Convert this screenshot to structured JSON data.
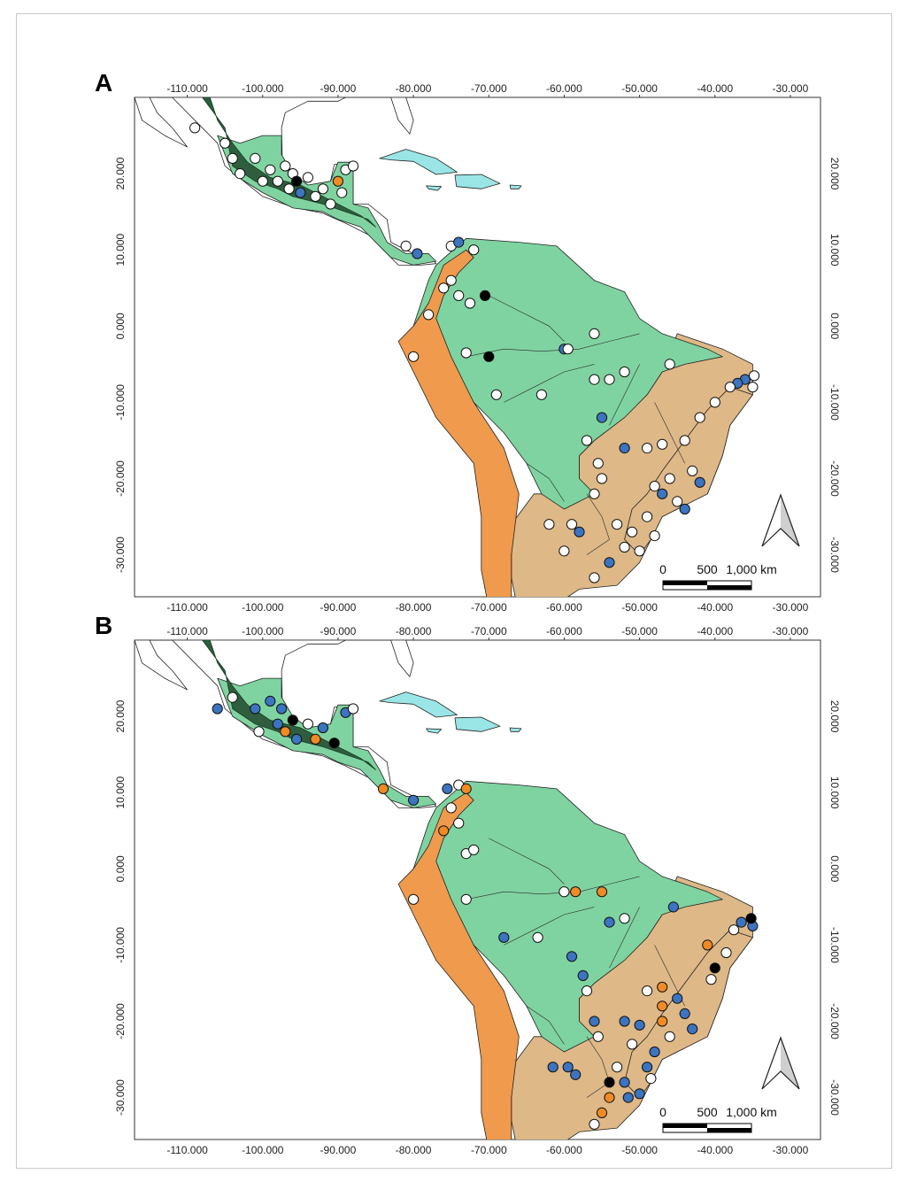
{
  "colors": {
    "tropical_moist": "#7fd3a0",
    "dry_savanna": "#deb887",
    "montane": "#ef9a4d",
    "conifer_dark": "#2e5e3e",
    "caribbean": "#9ae6e6",
    "outline": "#222222",
    "dot_white": "#ffffff",
    "dot_blue": "#3c74c0",
    "dot_orange": "#f08a24",
    "dot_black": "#000000"
  },
  "legend_classes": [
    "white",
    "blue",
    "orange",
    "black"
  ],
  "scale_bar": {
    "labels": [
      "0",
      "500",
      "1,000 km"
    ]
  },
  "panels": [
    {
      "id": "A",
      "label": "A",
      "x_ticks": [
        "-110.000",
        "-100.000",
        "-90.000",
        "-80.000",
        "-70.000",
        "-60.000",
        "-50.000",
        "-40.000",
        "-30.000"
      ],
      "x_tick_values": [
        -110,
        -100,
        -90,
        -80,
        -70,
        -60,
        -50,
        -40,
        -30
      ],
      "y_ticks": [
        "20.000",
        "10.000",
        "0.000",
        "-10.000",
        "-20.000",
        "-30.000"
      ],
      "y_tick_values": [
        20,
        10,
        0,
        -10,
        -20,
        -30
      ],
      "lon_range": [
        -117,
        -26
      ],
      "lat_range": [
        -35.5,
        30
      ],
      "points": [
        {
          "lon": -109,
          "lat": 26,
          "c": "white"
        },
        {
          "lon": -105,
          "lat": 24,
          "c": "white"
        },
        {
          "lon": -104,
          "lat": 22,
          "c": "white"
        },
        {
          "lon": -103,
          "lat": 20,
          "c": "white"
        },
        {
          "lon": -101,
          "lat": 22,
          "c": "white"
        },
        {
          "lon": -100,
          "lat": 19,
          "c": "white"
        },
        {
          "lon": -99,
          "lat": 20.5,
          "c": "white"
        },
        {
          "lon": -98,
          "lat": 19,
          "c": "white"
        },
        {
          "lon": -97,
          "lat": 21,
          "c": "white"
        },
        {
          "lon": -96.5,
          "lat": 18,
          "c": "white"
        },
        {
          "lon": -96,
          "lat": 20,
          "c": "white"
        },
        {
          "lon": -95.5,
          "lat": 19,
          "c": "black"
        },
        {
          "lon": -95,
          "lat": 17.5,
          "c": "blue"
        },
        {
          "lon": -94,
          "lat": 19.5,
          "c": "white"
        },
        {
          "lon": -93,
          "lat": 17,
          "c": "white"
        },
        {
          "lon": -92,
          "lat": 18,
          "c": "white"
        },
        {
          "lon": -91,
          "lat": 16,
          "c": "white"
        },
        {
          "lon": -90,
          "lat": 19,
          "c": "orange"
        },
        {
          "lon": -89,
          "lat": 20.5,
          "c": "white"
        },
        {
          "lon": -88,
          "lat": 21,
          "c": "white"
        },
        {
          "lon": -89.5,
          "lat": 17.5,
          "c": "white"
        },
        {
          "lon": -79.5,
          "lat": 9.5,
          "c": "blue"
        },
        {
          "lon": -81,
          "lat": 10.5,
          "c": "white"
        },
        {
          "lon": -75,
          "lat": 10.5,
          "c": "white"
        },
        {
          "lon": -74,
          "lat": 11,
          "c": "blue"
        },
        {
          "lon": -72,
          "lat": 10,
          "c": "white"
        },
        {
          "lon": -76,
          "lat": 5,
          "c": "white"
        },
        {
          "lon": -75,
          "lat": 6,
          "c": "white"
        },
        {
          "lon": -74,
          "lat": 4,
          "c": "white"
        },
        {
          "lon": -72.5,
          "lat": 3,
          "c": "white"
        },
        {
          "lon": -70.5,
          "lat": 4,
          "c": "black"
        },
        {
          "lon": -78,
          "lat": 1.5,
          "c": "white"
        },
        {
          "lon": -80,
          "lat": -4,
          "c": "white"
        },
        {
          "lon": -73,
          "lat": -3.5,
          "c": "white"
        },
        {
          "lon": -70,
          "lat": -4,
          "c": "black"
        },
        {
          "lon": -69,
          "lat": -9,
          "c": "white"
        },
        {
          "lon": -63,
          "lat": -9,
          "c": "white"
        },
        {
          "lon": -60,
          "lat": -3,
          "c": "blue"
        },
        {
          "lon": -59.5,
          "lat": -3,
          "c": "white"
        },
        {
          "lon": -56,
          "lat": -7,
          "c": "white"
        },
        {
          "lon": -54,
          "lat": -7,
          "c": "white"
        },
        {
          "lon": -52,
          "lat": -6,
          "c": "white"
        },
        {
          "lon": -55,
          "lat": -12,
          "c": "blue"
        },
        {
          "lon": -57,
          "lat": -15,
          "c": "white"
        },
        {
          "lon": -55.5,
          "lat": -18,
          "c": "white"
        },
        {
          "lon": -55,
          "lat": -20,
          "c": "white"
        },
        {
          "lon": -56,
          "lat": -22,
          "c": "white"
        },
        {
          "lon": -52,
          "lat": -16,
          "c": "blue"
        },
        {
          "lon": -49,
          "lat": -16,
          "c": "white"
        },
        {
          "lon": -47,
          "lat": -15.5,
          "c": "white"
        },
        {
          "lon": -44,
          "lat": -15,
          "c": "white"
        },
        {
          "lon": -42,
          "lat": -12,
          "c": "white"
        },
        {
          "lon": -40,
          "lat": -10,
          "c": "white"
        },
        {
          "lon": -46,
          "lat": -20,
          "c": "white"
        },
        {
          "lon": -48,
          "lat": -21,
          "c": "white"
        },
        {
          "lon": -47,
          "lat": -22,
          "c": "blue"
        },
        {
          "lon": -45,
          "lat": -23,
          "c": "white"
        },
        {
          "lon": -44,
          "lat": -24,
          "c": "blue"
        },
        {
          "lon": -43,
          "lat": -19,
          "c": "white"
        },
        {
          "lon": -42,
          "lat": -20.5,
          "c": "blue"
        },
        {
          "lon": -49,
          "lat": -25,
          "c": "white"
        },
        {
          "lon": -51,
          "lat": -27,
          "c": "white"
        },
        {
          "lon": -53,
          "lat": -26,
          "c": "white"
        },
        {
          "lon": -52,
          "lat": -29,
          "c": "white"
        },
        {
          "lon": -54,
          "lat": -31,
          "c": "blue"
        },
        {
          "lon": -56,
          "lat": -33,
          "c": "white"
        },
        {
          "lon": -58,
          "lat": -27,
          "c": "blue"
        },
        {
          "lon": -59,
          "lat": -26,
          "c": "white"
        },
        {
          "lon": -62,
          "lat": -26,
          "c": "white"
        },
        {
          "lon": -60,
          "lat": -29.5,
          "c": "white"
        },
        {
          "lon": -50,
          "lat": -29.5,
          "c": "white"
        },
        {
          "lon": -48,
          "lat": -27.5,
          "c": "white"
        },
        {
          "lon": -36,
          "lat": -7,
          "c": "blue"
        },
        {
          "lon": -35,
          "lat": -8,
          "c": "white"
        },
        {
          "lon": -37,
          "lat": -7.5,
          "c": "blue"
        },
        {
          "lon": -34.8,
          "lat": -6.5,
          "c": "white"
        },
        {
          "lon": -38,
          "lat": -8,
          "c": "white"
        },
        {
          "lon": -46,
          "lat": -5,
          "c": "white"
        },
        {
          "lon": -56,
          "lat": -1,
          "c": "white"
        }
      ]
    },
    {
      "id": "B",
      "label": "B",
      "x_ticks": [
        "-110.000",
        "-100.000",
        "-90.000",
        "-80.000",
        "-70.000",
        "-60.000",
        "-50.000",
        "-40.000",
        "-30.000"
      ],
      "x_tick_values": [
        -110,
        -100,
        -90,
        -80,
        -70,
        -60,
        -50,
        -40,
        -30
      ],
      "y_ticks": [
        "20.000",
        "10.000",
        "0.000",
        "-10.000",
        "-20.000",
        "-30.000"
      ],
      "y_tick_values": [
        20,
        10,
        0,
        -10,
        -20,
        -30
      ],
      "lon_range": [
        -117,
        -26
      ],
      "lat_range": [
        -35.5,
        30
      ],
      "points": [
        {
          "lon": -106,
          "lat": 21,
          "c": "blue"
        },
        {
          "lon": -104,
          "lat": 22.5,
          "c": "white"
        },
        {
          "lon": -101,
          "lat": 21,
          "c": "blue"
        },
        {
          "lon": -99,
          "lat": 22,
          "c": "blue"
        },
        {
          "lon": -97.5,
          "lat": 21,
          "c": "blue"
        },
        {
          "lon": -98,
          "lat": 19,
          "c": "blue"
        },
        {
          "lon": -96,
          "lat": 19.5,
          "c": "black"
        },
        {
          "lon": -97,
          "lat": 18,
          "c": "orange"
        },
        {
          "lon": -95.5,
          "lat": 17,
          "c": "blue"
        },
        {
          "lon": -94,
          "lat": 19,
          "c": "white"
        },
        {
          "lon": -93,
          "lat": 17,
          "c": "orange"
        },
        {
          "lon": -92,
          "lat": 18.5,
          "c": "blue"
        },
        {
          "lon": -90.5,
          "lat": 16.5,
          "c": "black"
        },
        {
          "lon": -89,
          "lat": 20.5,
          "c": "blue"
        },
        {
          "lon": -88,
          "lat": 21,
          "c": "white"
        },
        {
          "lon": -100.5,
          "lat": 18,
          "c": "white"
        },
        {
          "lon": -84,
          "lat": 10.5,
          "c": "orange"
        },
        {
          "lon": -80,
          "lat": 9,
          "c": "blue"
        },
        {
          "lon": -75.5,
          "lat": 10.5,
          "c": "blue"
        },
        {
          "lon": -74,
          "lat": 11,
          "c": "white"
        },
        {
          "lon": -73,
          "lat": 10.5,
          "c": "orange"
        },
        {
          "lon": -75,
          "lat": 8,
          "c": "white"
        },
        {
          "lon": -76,
          "lat": 5,
          "c": "orange"
        },
        {
          "lon": -74,
          "lat": 6,
          "c": "white"
        },
        {
          "lon": -73,
          "lat": 2,
          "c": "white"
        },
        {
          "lon": -72,
          "lat": 2.5,
          "c": "white"
        },
        {
          "lon": -80,
          "lat": -4,
          "c": "white"
        },
        {
          "lon": -73,
          "lat": -4,
          "c": "white"
        },
        {
          "lon": -68,
          "lat": -9,
          "c": "blue"
        },
        {
          "lon": -63.5,
          "lat": -9,
          "c": "white"
        },
        {
          "lon": -60,
          "lat": -3,
          "c": "white"
        },
        {
          "lon": -58.5,
          "lat": -3,
          "c": "orange"
        },
        {
          "lon": -55,
          "lat": -3,
          "c": "orange"
        },
        {
          "lon": -54,
          "lat": -7,
          "c": "blue"
        },
        {
          "lon": -52,
          "lat": -6.5,
          "c": "white"
        },
        {
          "lon": -59,
          "lat": -11.5,
          "c": "blue"
        },
        {
          "lon": -57.5,
          "lat": -14,
          "c": "blue"
        },
        {
          "lon": -57,
          "lat": -16,
          "c": "white"
        },
        {
          "lon": -56,
          "lat": -20,
          "c": "blue"
        },
        {
          "lon": -55.5,
          "lat": -22,
          "c": "white"
        },
        {
          "lon": -52,
          "lat": -20,
          "c": "blue"
        },
        {
          "lon": -50,
          "lat": -20.5,
          "c": "blue"
        },
        {
          "lon": -49,
          "lat": -16,
          "c": "white"
        },
        {
          "lon": -47,
          "lat": -15.5,
          "c": "orange"
        },
        {
          "lon": -47,
          "lat": -18,
          "c": "orange"
        },
        {
          "lon": -47,
          "lat": -20,
          "c": "orange"
        },
        {
          "lon": -45,
          "lat": -17,
          "c": "blue"
        },
        {
          "lon": -44,
          "lat": -19,
          "c": "blue"
        },
        {
          "lon": -43,
          "lat": -21,
          "c": "blue"
        },
        {
          "lon": -46,
          "lat": -22,
          "c": "white"
        },
        {
          "lon": -48,
          "lat": -24,
          "c": "blue"
        },
        {
          "lon": -49,
          "lat": -26,
          "c": "blue"
        },
        {
          "lon": -51,
          "lat": -23,
          "c": "white"
        },
        {
          "lon": -53,
          "lat": -26,
          "c": "white"
        },
        {
          "lon": -54,
          "lat": -28,
          "c": "black"
        },
        {
          "lon": -52,
          "lat": -28,
          "c": "blue"
        },
        {
          "lon": -50,
          "lat": -29.5,
          "c": "blue"
        },
        {
          "lon": -51.5,
          "lat": -30,
          "c": "blue"
        },
        {
          "lon": -54,
          "lat": -30,
          "c": "orange"
        },
        {
          "lon": -55,
          "lat": -32,
          "c": "orange"
        },
        {
          "lon": -56,
          "lat": -33.5,
          "c": "white"
        },
        {
          "lon": -58.5,
          "lat": -27,
          "c": "blue"
        },
        {
          "lon": -59.5,
          "lat": -26,
          "c": "blue"
        },
        {
          "lon": -61.5,
          "lat": -26,
          "c": "blue"
        },
        {
          "lon": -48.5,
          "lat": -27.5,
          "c": "white"
        },
        {
          "lon": -41,
          "lat": -10,
          "c": "orange"
        },
        {
          "lon": -40,
          "lat": -13,
          "c": "black"
        },
        {
          "lon": -40.5,
          "lat": -14.5,
          "c": "white"
        },
        {
          "lon": -38.5,
          "lat": -11,
          "c": "white"
        },
        {
          "lon": -36.5,
          "lat": -7,
          "c": "blue"
        },
        {
          "lon": -35,
          "lat": -7.5,
          "c": "blue"
        },
        {
          "lon": -35.2,
          "lat": -6.5,
          "c": "black"
        },
        {
          "lon": -37.5,
          "lat": -8,
          "c": "white"
        },
        {
          "lon": -45.5,
          "lat": -5,
          "c": "blue"
        }
      ]
    }
  ]
}
